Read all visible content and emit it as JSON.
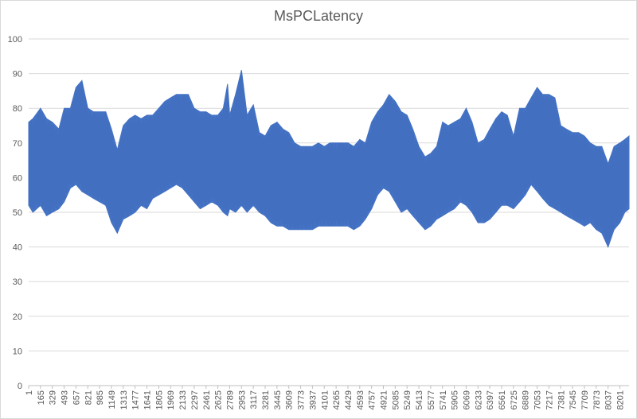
{
  "chart_data": {
    "type": "area",
    "title": "MsPCLatency",
    "xlabel": "",
    "ylabel": "",
    "ylim": [
      0,
      100
    ],
    "yticks": [
      0,
      10,
      20,
      30,
      40,
      50,
      60,
      70,
      80,
      90,
      100
    ],
    "xlim": [
      1,
      8328
    ],
    "xticks": [
      1,
      165,
      329,
      493,
      657,
      821,
      985,
      1149,
      1313,
      1477,
      1641,
      1805,
      1969,
      2133,
      2297,
      2461,
      2625,
      2789,
      2953,
      3117,
      3281,
      3445,
      3609,
      3773,
      3937,
      4101,
      4265,
      4429,
      4593,
      4757,
      4921,
      5085,
      5249,
      5413,
      5577,
      5741,
      5905,
      6069,
      6233,
      6397,
      6561,
      6725,
      6889,
      7053,
      7217,
      7381,
      7545,
      7709,
      7873,
      8037,
      8201
    ],
    "grid": true,
    "legend": "none",
    "color": "#4472c4",
    "envelope": {
      "x": [
        1,
        60,
        165,
        250,
        329,
        420,
        493,
        580,
        657,
        740,
        821,
        900,
        985,
        1070,
        1149,
        1230,
        1313,
        1400,
        1477,
        1560,
        1641,
        1720,
        1805,
        1890,
        1969,
        2050,
        2133,
        2215,
        2297,
        2380,
        2461,
        2540,
        2625,
        2700,
        2760,
        2789,
        2870,
        2953,
        3030,
        3117,
        3200,
        3281,
        3360,
        3445,
        3530,
        3609,
        3690,
        3773,
        3850,
        3937,
        4020,
        4101,
        4180,
        4265,
        4350,
        4429,
        4510,
        4593,
        4670,
        4757,
        4840,
        4921,
        5000,
        5085,
        5170,
        5249,
        5330,
        5413,
        5500,
        5577,
        5660,
        5741,
        5820,
        5905,
        5990,
        6069,
        6150,
        6233,
        6320,
        6397,
        6480,
        6561,
        6640,
        6725,
        6810,
        6889,
        6970,
        7053,
        7130,
        7217,
        7300,
        7381,
        7460,
        7545,
        7630,
        7709,
        7790,
        7873,
        7950,
        8037,
        8120,
        8201,
        8270,
        8328
      ],
      "upper": [
        76,
        77,
        80,
        77,
        76,
        74,
        80,
        80,
        86,
        88,
        80,
        79,
        79,
        79,
        74,
        68,
        75,
        77,
        78,
        77,
        78,
        78,
        80,
        82,
        83,
        84,
        84,
        84,
        80,
        79,
        79,
        78,
        78,
        80,
        87,
        78,
        84,
        91,
        78,
        81,
        73,
        72,
        75,
        76,
        74,
        73,
        70,
        69,
        69,
        69,
        70,
        69,
        70,
        70,
        70,
        70,
        69,
        71,
        70,
        76,
        79,
        81,
        84,
        82,
        79,
        78,
        74,
        69,
        66,
        67,
        69,
        76,
        75,
        76,
        77,
        80,
        76,
        70,
        71,
        74,
        77,
        79,
        78,
        72,
        80,
        80,
        83,
        86,
        84,
        84,
        83,
        75,
        74,
        73,
        73,
        72,
        70,
        69,
        69,
        64,
        69,
        70,
        71,
        72
      ],
      "lower": [
        52,
        50,
        52,
        49,
        50,
        51,
        53,
        57,
        58,
        56,
        55,
        54,
        53,
        52,
        47,
        44,
        48,
        49,
        50,
        52,
        51,
        54,
        55,
        56,
        57,
        58,
        57,
        55,
        53,
        51,
        52,
        53,
        52,
        50,
        49,
        51,
        50,
        52,
        50,
        52,
        50,
        49,
        47,
        46,
        46,
        45,
        45,
        45,
        45,
        45,
        46,
        46,
        46,
        46,
        46,
        46,
        45,
        46,
        48,
        51,
        55,
        57,
        56,
        53,
        50,
        51,
        49,
        47,
        45,
        46,
        48,
        49,
        50,
        51,
        53,
        52,
        50,
        47,
        47,
        48,
        50,
        52,
        52,
        51,
        53,
        55,
        58,
        56,
        54,
        52,
        51,
        50,
        49,
        48,
        47,
        46,
        47,
        45,
        44,
        40,
        45,
        47,
        50,
        51
      ]
    }
  }
}
